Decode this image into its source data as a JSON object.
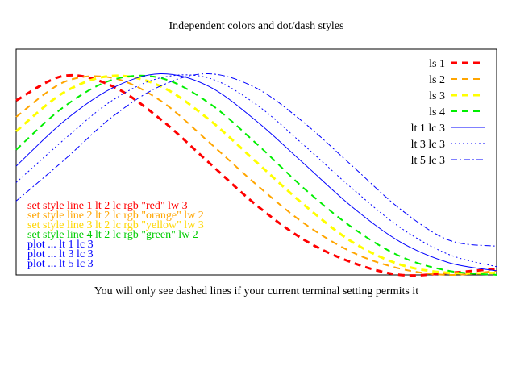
{
  "chart_data": {
    "type": "line",
    "title": "Independent colors and dot/dash styles",
    "xlabel": "You will only see dashed lines if your current terminal setting permits it",
    "ylabel": "",
    "grid": false,
    "legend_position": "top-right",
    "series": [
      {
        "name": "ls 1",
        "color": "#ff0000",
        "dash": "dashed",
        "width": 3,
        "x": [
          0,
          0.1,
          0.2,
          0.3,
          0.4,
          0.5,
          0.6,
          0.7,
          0.8,
          0.9,
          1.0
        ],
        "y": [
          0.85,
          0.97,
          0.92,
          0.76,
          0.55,
          0.34,
          0.17,
          0.06,
          0.0,
          0.01,
          0.03
        ]
      },
      {
        "name": "ls 2",
        "color": "#ffa500",
        "dash": "dashed",
        "width": 2,
        "x": [
          0,
          0.1,
          0.2,
          0.3,
          0.4,
          0.5,
          0.6,
          0.7,
          0.8,
          0.9,
          1.0
        ],
        "y": [
          0.77,
          0.94,
          0.96,
          0.85,
          0.65,
          0.44,
          0.25,
          0.11,
          0.03,
          0.0,
          0.02
        ]
      },
      {
        "name": "ls 3",
        "color": "#ffff00",
        "dash": "dashed",
        "width": 3,
        "x": [
          0,
          0.1,
          0.2,
          0.3,
          0.4,
          0.5,
          0.6,
          0.7,
          0.8,
          0.9,
          1.0
        ],
        "y": [
          0.7,
          0.89,
          0.97,
          0.92,
          0.76,
          0.55,
          0.34,
          0.16,
          0.05,
          0.01,
          0.01
        ]
      },
      {
        "name": "ls 4",
        "color": "#00ee00",
        "dash": "dashed",
        "width": 2,
        "x": [
          0,
          0.1,
          0.2,
          0.3,
          0.4,
          0.5,
          0.6,
          0.7,
          0.8,
          0.9,
          1.0
        ],
        "y": [
          0.61,
          0.82,
          0.95,
          0.96,
          0.84,
          0.64,
          0.42,
          0.23,
          0.09,
          0.02,
          0.0
        ]
      },
      {
        "name": "lt 1 lc 3",
        "color": "#0000ff",
        "dash": "solid",
        "width": 1,
        "x": [
          0,
          0.1,
          0.2,
          0.3,
          0.4,
          0.5,
          0.6,
          0.7,
          0.8,
          0.9,
          1.0
        ],
        "y": [
          0.53,
          0.75,
          0.91,
          0.98,
          0.92,
          0.75,
          0.54,
          0.33,
          0.16,
          0.06,
          0.02
        ]
      },
      {
        "name": "lt 3 lc 3",
        "color": "#0000ff",
        "dash": "dotted",
        "width": 1,
        "x": [
          0,
          0.1,
          0.2,
          0.3,
          0.4,
          0.5,
          0.6,
          0.7,
          0.8,
          0.9,
          1.0
        ],
        "y": [
          0.45,
          0.66,
          0.85,
          0.96,
          0.96,
          0.83,
          0.63,
          0.42,
          0.23,
          0.1,
          0.04
        ]
      },
      {
        "name": "lt 5 lc 3",
        "color": "#0000ff",
        "dash": "dashdot",
        "width": 1,
        "x": [
          0,
          0.1,
          0.2,
          0.3,
          0.4,
          0.5,
          0.6,
          0.7,
          0.8,
          0.9,
          1.0
        ],
        "y": [
          0.36,
          0.56,
          0.77,
          0.92,
          0.98,
          0.91,
          0.74,
          0.53,
          0.32,
          0.17,
          0.14
        ]
      }
    ],
    "xlim": [
      0,
      1
    ],
    "ylim": [
      0,
      1.1
    ],
    "annotations": [
      {
        "text": "set style line 1 lt 2 lc rgb \"red\" lw 3",
        "color": "#ff0000"
      },
      {
        "text": "set style line 2 lt 2 lc rgb \"orange\" lw 2",
        "color": "#ffa500"
      },
      {
        "text": "set style line 3 lt 2 lc rgb \"yellow\" lw 3",
        "color": "#ffd700"
      },
      {
        "text": "set style line 4 lt 2 lc rgb \"green\" lw 2",
        "color": "#00cc00"
      },
      {
        "text": "plot ... lt 1 lc 3",
        "color": "#0000ff"
      },
      {
        "text": "plot ... lt 3 lc 3",
        "color": "#0000ff"
      },
      {
        "text": "plot ... lt 5 lc 3",
        "color": "#0000ff"
      }
    ]
  }
}
